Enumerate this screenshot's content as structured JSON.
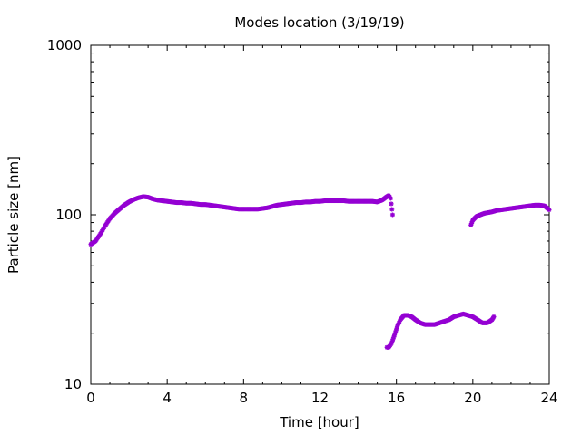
{
  "chart_data": {
    "type": "scatter",
    "title": "Modes location (3/19/19)",
    "xlabel": "Time [hour]",
    "ylabel": "Particle size [nm]",
    "xlim": [
      0,
      24
    ],
    "ylim": [
      10,
      1000
    ],
    "yscale": "log",
    "grid": false,
    "xticks": [
      0,
      4,
      8,
      12,
      16,
      20,
      24
    ],
    "xtick_labels": [
      "0",
      "4",
      "8",
      "12",
      "16",
      "20",
      "24"
    ],
    "yticks": [
      10,
      100,
      1000
    ],
    "ytick_labels": [
      "10",
      "100",
      "1000"
    ],
    "marker_color": "#9400d3",
    "series": [
      {
        "x": [
          0.0,
          0.25,
          0.5,
          0.75,
          1.0,
          1.25,
          1.5,
          1.75,
          2.0,
          2.25,
          2.5,
          2.75,
          3.0,
          3.25,
          3.5,
          3.75,
          4.0,
          4.25,
          4.5,
          4.75,
          5.0,
          5.25,
          5.5,
          5.75,
          6.0,
          6.25,
          6.5,
          6.75,
          7.0,
          7.25,
          7.5,
          7.75,
          8.0,
          8.25,
          8.5,
          8.75,
          9.0,
          9.25,
          9.5,
          9.75,
          10.0,
          10.25,
          10.5,
          10.75,
          11.0,
          11.25,
          11.5,
          11.75,
          12.0,
          12.25,
          12.5,
          12.75,
          13.0,
          13.25,
          13.5,
          13.75,
          14.0,
          14.25,
          14.5,
          14.75,
          15.0,
          15.25,
          15.5,
          15.6,
          15.7,
          15.8
        ],
        "values": [
          67,
          70,
          77,
          86,
          95,
          102,
          108,
          114,
          119,
          123,
          126,
          128,
          127,
          124,
          122,
          121,
          120,
          119,
          118,
          118,
          117,
          117,
          116,
          115,
          115,
          114,
          113,
          112,
          111,
          110,
          109,
          108,
          108,
          108,
          108,
          108,
          109,
          110,
          112,
          114,
          115,
          116,
          117,
          118,
          118,
          119,
          119,
          120,
          120,
          121,
          121,
          121,
          121,
          121,
          120,
          120,
          120,
          120,
          120,
          120,
          119,
          122,
          128,
          130,
          125,
          100
        ]
      },
      {
        "x": [
          15.5,
          15.6,
          15.75,
          15.9,
          16.05,
          16.2,
          16.4,
          16.6,
          16.8,
          17.0,
          17.25,
          17.5,
          17.75,
          18.0,
          18.25,
          18.5,
          18.75,
          19.0,
          19.25,
          19.5,
          19.75,
          20.0,
          20.25,
          20.5,
          20.75,
          21.0,
          21.1
        ],
        "values": [
          16.5,
          16.5,
          17.5,
          19.5,
          22.0,
          24.0,
          25.5,
          25.5,
          25.0,
          24.0,
          23.0,
          22.5,
          22.5,
          22.5,
          23.0,
          23.5,
          24.0,
          25.0,
          25.5,
          26.0,
          25.5,
          25.0,
          24.0,
          23.0,
          23.0,
          24.0,
          25.0
        ]
      },
      {
        "x": [
          19.9,
          20.0,
          20.2,
          20.4,
          20.6,
          20.8,
          21.0,
          21.25,
          21.5,
          21.75,
          22.0,
          22.25,
          22.5,
          22.75,
          23.0,
          23.25,
          23.5,
          23.75,
          24.0
        ],
        "values": [
          87,
          93,
          98,
          100,
          102,
          103,
          104,
          106,
          107,
          108,
          109,
          110,
          111,
          112,
          113,
          114,
          114,
          113,
          107
        ]
      }
    ]
  }
}
